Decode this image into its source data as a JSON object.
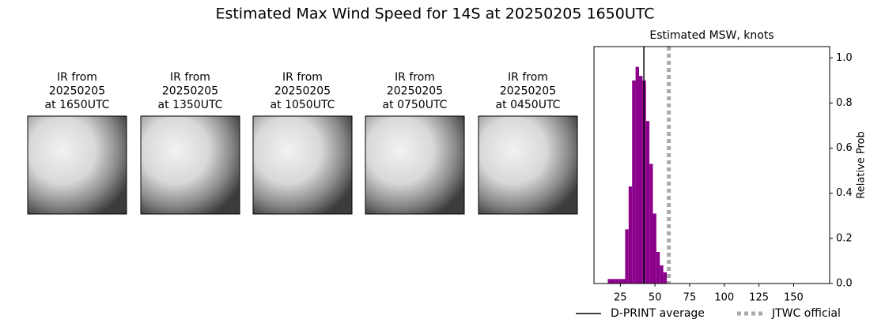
{
  "title": "Estimated Max Wind Speed for 14S at 20250205 1650UTC",
  "panels": [
    {
      "title_lines": [
        "IR from",
        "20250205",
        "at 1650UTC"
      ]
    },
    {
      "title_lines": [
        "IR from",
        "20250205",
        "at 1350UTC"
      ]
    },
    {
      "title_lines": [
        "IR from",
        "20250205",
        "at 1050UTC"
      ]
    },
    {
      "title_lines": [
        "IR from",
        "20250205",
        "at 0750UTC"
      ]
    },
    {
      "title_lines": [
        "IR from",
        "20250205",
        "at 0450UTC"
      ]
    }
  ],
  "chart_data": {
    "type": "histogram",
    "title": "Estimated MSW, knots",
    "y_label": "Relative Prob",
    "bins": [
      16,
      18.5,
      21,
      23.5,
      26,
      28.5,
      31,
      33.5,
      36,
      38.5,
      41,
      43.5,
      46,
      48.5,
      51,
      53.5,
      56,
      58.5
    ],
    "values": [
      0.02,
      0.02,
      0.02,
      0.02,
      0.02,
      0.24,
      0.43,
      0.9,
      0.96,
      0.92,
      0.9,
      0.72,
      0.53,
      0.31,
      0.14,
      0.08,
      0.05
    ],
    "color": "#8b008b",
    "xlim": [
      6,
      176
    ],
    "xticks": [
      25,
      50,
      75,
      100,
      125,
      150
    ],
    "ylim": [
      0,
      1.05
    ],
    "yticks": [
      {
        "value": 0,
        "label": "0.0"
      },
      {
        "value": 0.2,
        "label": "0.2"
      },
      {
        "value": 0.4,
        "label": "0.4"
      },
      {
        "value": 0.6,
        "label": "0.6"
      },
      {
        "value": 0.8,
        "label": "0.8"
      },
      {
        "value": 1,
        "label": "1.0"
      }
    ],
    "lines": [
      {
        "name": "D-PRINT average",
        "value": 42,
        "color": "#000000",
        "style": "solid"
      },
      {
        "name": "JTWC official",
        "value": 60,
        "color": "#aaaaaa",
        "style": "dotted"
      }
    ]
  }
}
